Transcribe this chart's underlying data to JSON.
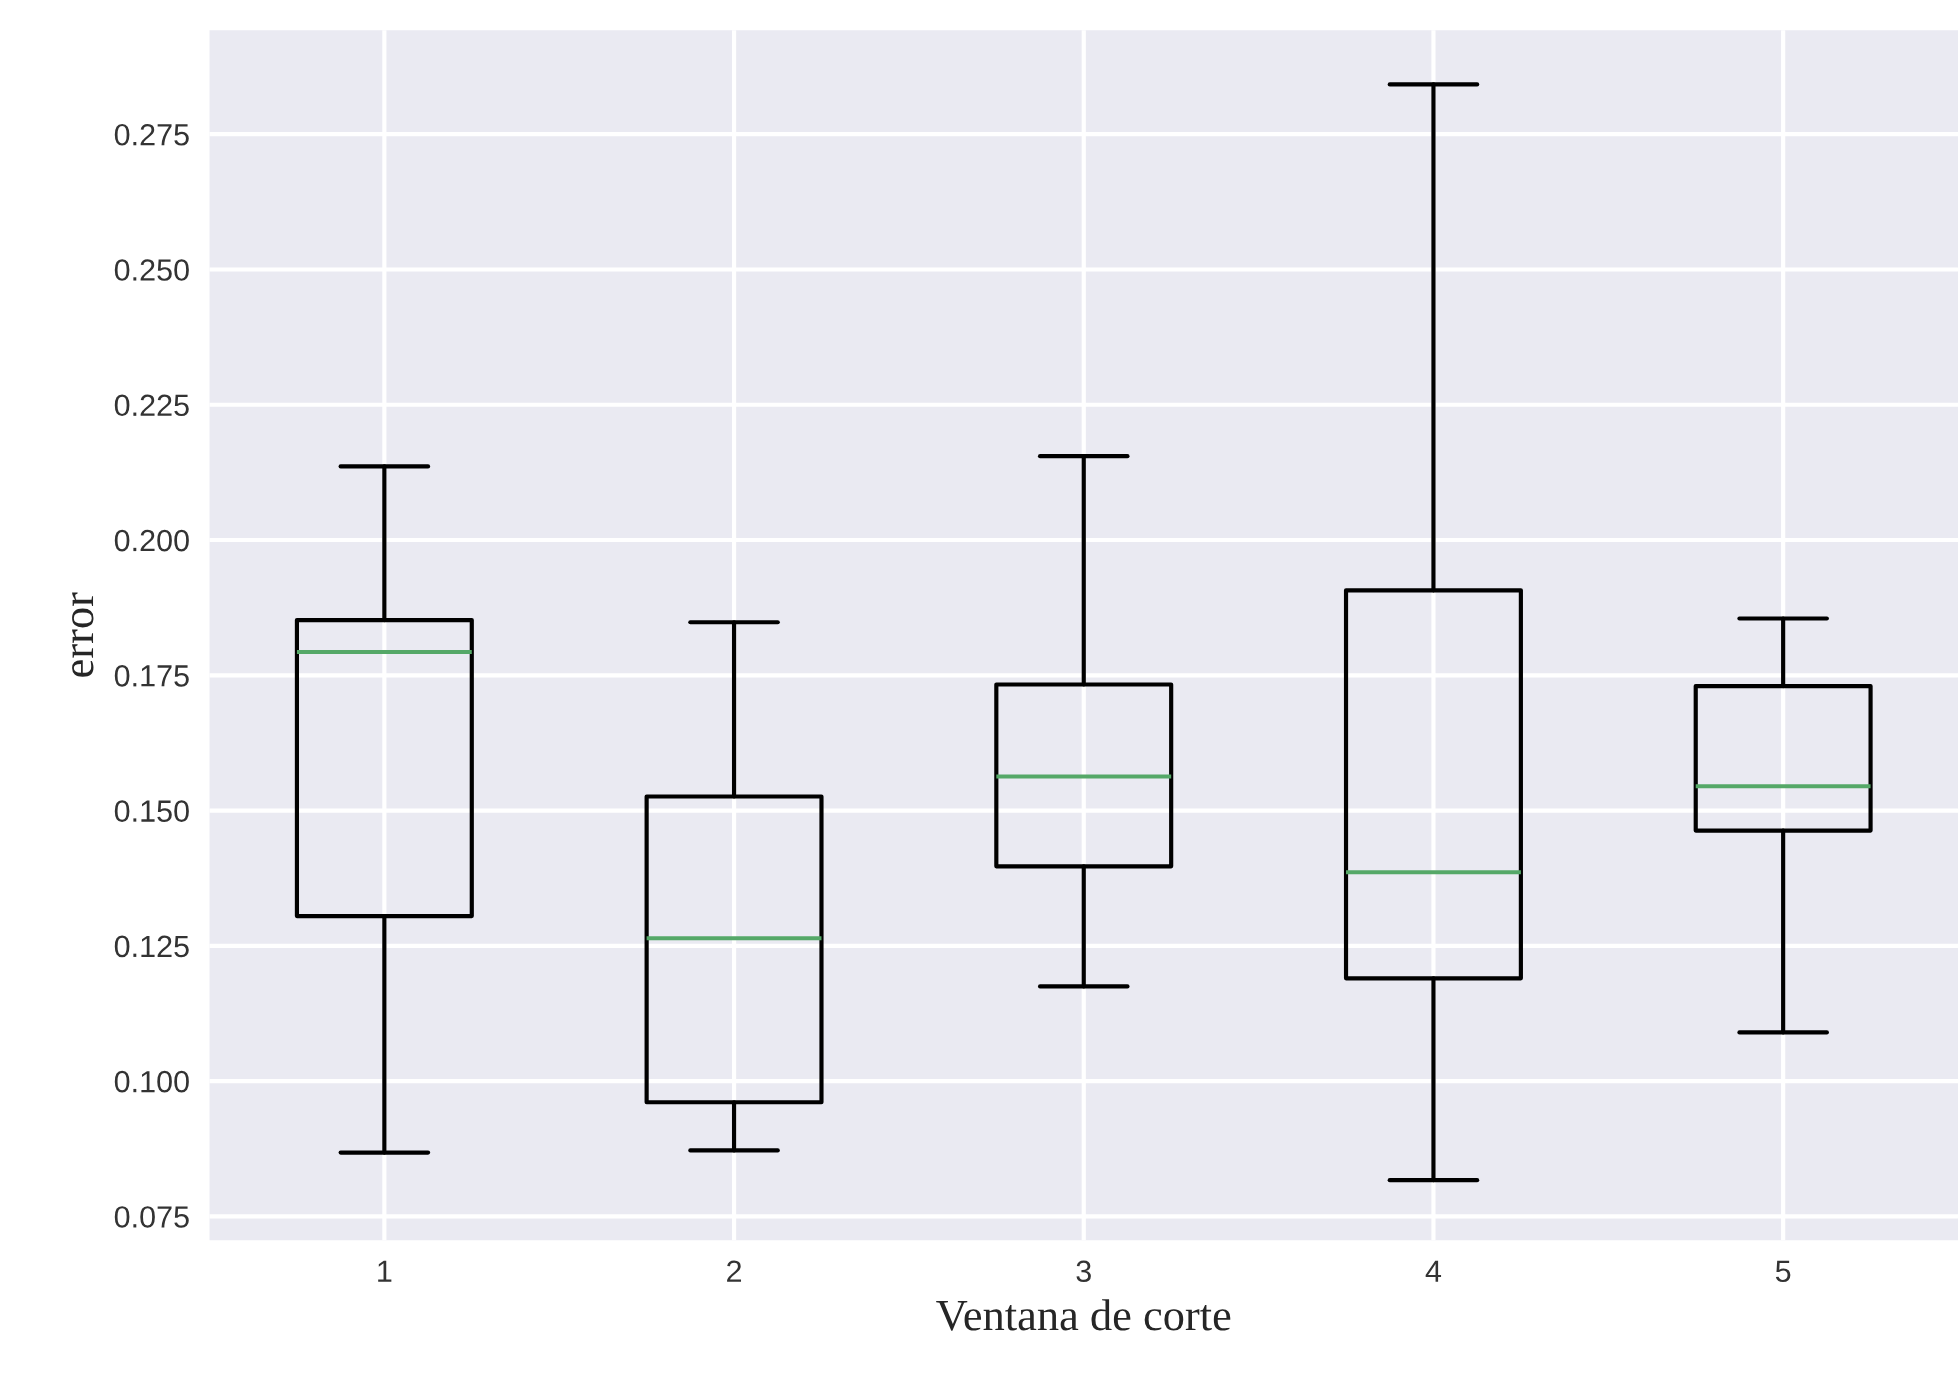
{
  "chart_data": {
    "type": "box",
    "xlabel": "Ventana de corte",
    "ylabel": "error",
    "categories": [
      "1",
      "2",
      "3",
      "4",
      "5"
    ],
    "boxes": [
      {
        "low": 0.0868,
        "q1": 0.1305,
        "median": 0.1793,
        "q3": 0.1852,
        "high": 0.2136
      },
      {
        "low": 0.0872,
        "q1": 0.0961,
        "median": 0.1264,
        "q3": 0.1526,
        "high": 0.1848
      },
      {
        "low": 0.1175,
        "q1": 0.1397,
        "median": 0.1563,
        "q3": 0.1733,
        "high": 0.2155
      },
      {
        "low": 0.0817,
        "q1": 0.119,
        "median": 0.1386,
        "q3": 0.1907,
        "high": 0.2842
      },
      {
        "low": 0.109,
        "q1": 0.1463,
        "median": 0.1545,
        "q3": 0.173,
        "high": 0.1855
      }
    ],
    "color": "#000000",
    "ylim": [
      0.0706,
      0.2942
    ],
    "yticks": [
      {
        "value": 0.075,
        "label": "0.075"
      },
      {
        "value": 0.1,
        "label": "0.100"
      },
      {
        "value": 0.125,
        "label": "0.125"
      },
      {
        "value": 0.15,
        "label": "0.150"
      },
      {
        "value": 0.175,
        "label": "0.175"
      },
      {
        "value": 0.2,
        "label": "0.200"
      },
      {
        "value": 0.225,
        "label": "0.225"
      },
      {
        "value": 0.25,
        "label": "0.250"
      },
      {
        "value": 0.275,
        "label": "0.275"
      }
    ],
    "grid": true
  }
}
